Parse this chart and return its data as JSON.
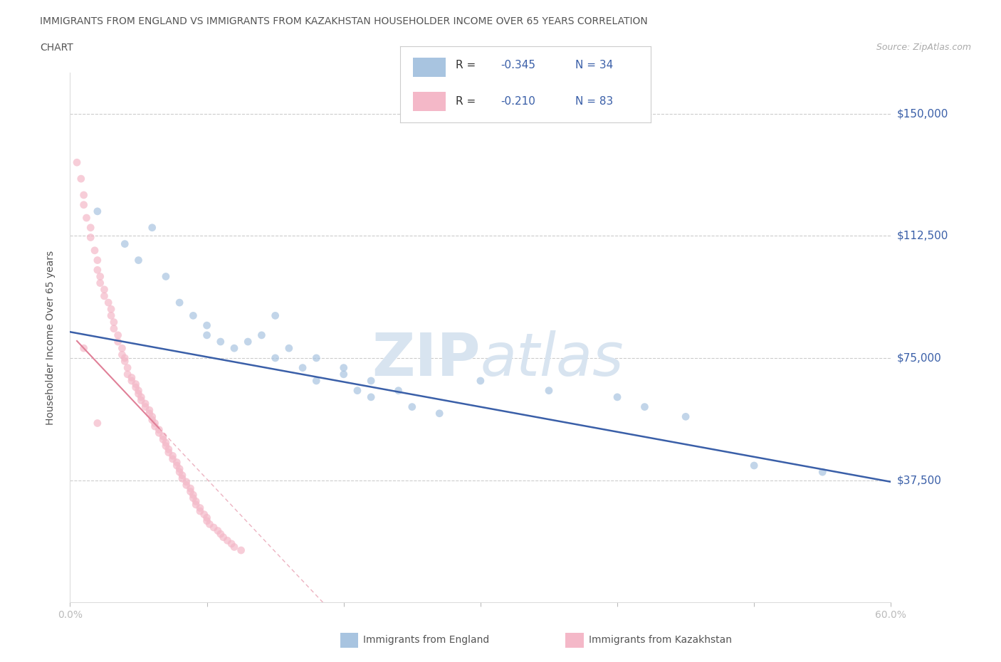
{
  "title_line1": "IMMIGRANTS FROM ENGLAND VS IMMIGRANTS FROM KAZAKHSTAN HOUSEHOLDER INCOME OVER 65 YEARS CORRELATION",
  "title_line2": "CHART",
  "source_text": "Source: ZipAtlas.com",
  "watermark_zip": "ZIP",
  "watermark_atlas": "atlas",
  "ylabel": "Householder Income Over 65 years",
  "xmin": 0.0,
  "xmax": 0.6,
  "ymin": 0,
  "ymax": 162500,
  "yticks": [
    0,
    37500,
    75000,
    112500,
    150000
  ],
  "ytick_labels": [
    "",
    "$37,500",
    "$75,000",
    "$112,500",
    "$150,000"
  ],
  "xtick_positions": [
    0.0,
    0.1,
    0.2,
    0.3,
    0.4,
    0.5,
    0.6
  ],
  "xtick_labels": [
    "0.0%",
    "",
    "",
    "",
    "",
    "",
    "60.0%"
  ],
  "england_scatter_color": "#a8c4e0",
  "kazakhstan_scatter_color": "#f4b8c8",
  "trend_color_england": "#3a5fa8",
  "trend_color_kazakhstan": "#e08098",
  "legend_r_color": "#3a5fa8",
  "legend_text_color": "#333333",
  "title_color": "#555555",
  "ylabel_color": "#555555",
  "ytick_label_color": "#3a5fa8",
  "xtick_label_color": "#555555",
  "grid_color": "#cccccc",
  "watermark_color": "#d8e4f0",
  "england_x": [
    0.02,
    0.06,
    0.04,
    0.05,
    0.07,
    0.08,
    0.09,
    0.1,
    0.1,
    0.11,
    0.12,
    0.13,
    0.14,
    0.15,
    0.16,
    0.17,
    0.18,
    0.2,
    0.21,
    0.22,
    0.24,
    0.25,
    0.27,
    0.15,
    0.18,
    0.2,
    0.22,
    0.55,
    0.5,
    0.3,
    0.35,
    0.4,
    0.42,
    0.45
  ],
  "england_y": [
    120000,
    115000,
    110000,
    105000,
    100000,
    92000,
    88000,
    85000,
    82000,
    80000,
    78000,
    80000,
    82000,
    75000,
    78000,
    72000,
    68000,
    70000,
    65000,
    63000,
    65000,
    60000,
    58000,
    88000,
    75000,
    72000,
    68000,
    40000,
    42000,
    68000,
    65000,
    63000,
    60000,
    57000
  ],
  "kazakhstan_x": [
    0.005,
    0.008,
    0.01,
    0.01,
    0.012,
    0.015,
    0.015,
    0.018,
    0.02,
    0.02,
    0.022,
    0.022,
    0.025,
    0.025,
    0.028,
    0.03,
    0.03,
    0.032,
    0.032,
    0.035,
    0.035,
    0.038,
    0.038,
    0.04,
    0.04,
    0.042,
    0.042,
    0.045,
    0.045,
    0.048,
    0.048,
    0.05,
    0.05,
    0.052,
    0.052,
    0.055,
    0.055,
    0.058,
    0.058,
    0.06,
    0.06,
    0.062,
    0.062,
    0.065,
    0.065,
    0.068,
    0.068,
    0.07,
    0.07,
    0.072,
    0.072,
    0.075,
    0.075,
    0.078,
    0.078,
    0.08,
    0.08,
    0.082,
    0.082,
    0.085,
    0.085,
    0.088,
    0.088,
    0.09,
    0.09,
    0.092,
    0.092,
    0.095,
    0.095,
    0.098,
    0.1,
    0.1,
    0.102,
    0.105,
    0.108,
    0.11,
    0.112,
    0.115,
    0.118,
    0.12,
    0.125,
    0.01,
    0.02
  ],
  "kazakhstan_y": [
    135000,
    130000,
    125000,
    122000,
    118000,
    115000,
    112000,
    108000,
    105000,
    102000,
    100000,
    98000,
    96000,
    94000,
    92000,
    90000,
    88000,
    86000,
    84000,
    82000,
    80000,
    78000,
    76000,
    75000,
    74000,
    72000,
    70000,
    69000,
    68000,
    67000,
    66000,
    65000,
    64000,
    63000,
    62000,
    61000,
    60000,
    59000,
    58000,
    57000,
    56000,
    55000,
    54000,
    53000,
    52000,
    51000,
    50000,
    49000,
    48000,
    47000,
    46000,
    45000,
    44000,
    43000,
    42000,
    41000,
    40000,
    39000,
    38000,
    37000,
    36000,
    35000,
    34000,
    33000,
    32000,
    31000,
    30000,
    29000,
    28000,
    27000,
    26000,
    25000,
    24000,
    23000,
    22000,
    21000,
    20000,
    19000,
    18000,
    17000,
    16000,
    78000,
    55000
  ]
}
